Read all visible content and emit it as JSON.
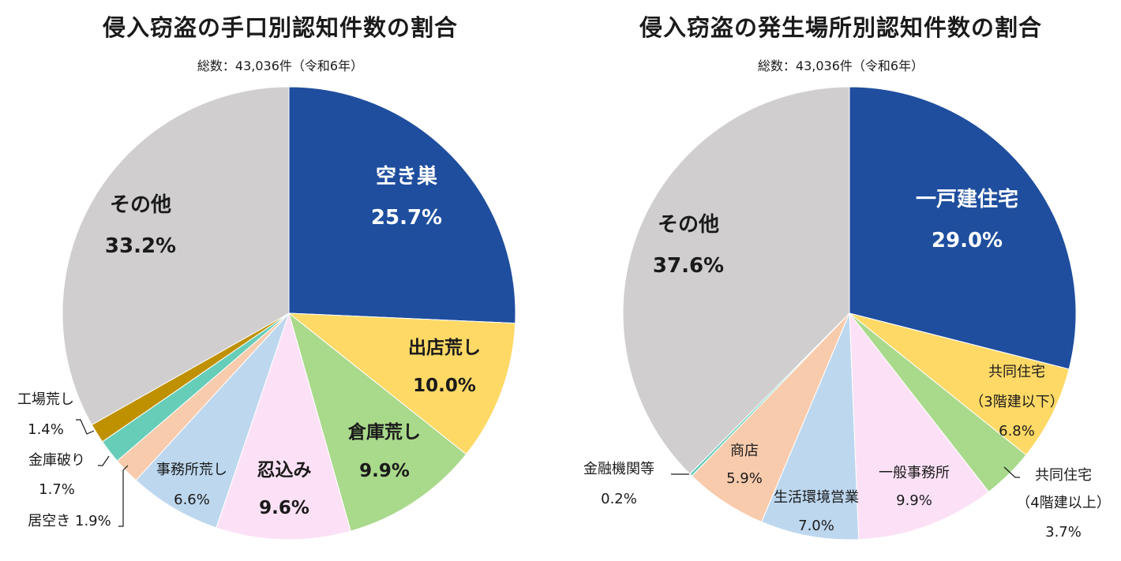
{
  "chart_data": [
    {
      "type": "pie",
      "title": "侵入窃盗の手口別認知件数の割合",
      "subtitle": "総数：43,036件（令和6年）",
      "slices": [
        {
          "label": "空き巣",
          "value_label": "25.7%",
          "value": 25.7,
          "color": "#1F4E9E"
        },
        {
          "label": "出店荒し",
          "value_label": "10.0%",
          "value": 10.0,
          "color": "#FFD966"
        },
        {
          "label": "倉庫荒し",
          "value_label": "9.9%",
          "value": 9.9,
          "color": "#A9D98B"
        },
        {
          "label": "忍込み",
          "value_label": "9.6%",
          "value": 9.6,
          "color": "#FCE1F6"
        },
        {
          "label": "事務所荒し",
          "value_label": "6.6%",
          "value": 6.6,
          "color": "#BDD7EE"
        },
        {
          "label": "居空き",
          "value_label": "1.9%",
          "value": 1.9,
          "color": "#F8CBAD"
        },
        {
          "label": "金庫破り",
          "value_label": "1.7%",
          "value": 1.7,
          "color": "#66CDB8"
        },
        {
          "label": "工場荒し",
          "value_label": "1.4%",
          "value": 1.4,
          "color": "#BF9000"
        },
        {
          "label": "その他",
          "value_label": "33.2%",
          "value": 33.2,
          "color": "#D0CECE"
        }
      ]
    },
    {
      "type": "pie",
      "title": "侵入窃盗の発生場所別認知件数の割合",
      "subtitle": "総数：43,036件（令和6年）",
      "slices": [
        {
          "label": "一戸建住宅",
          "value_label": "29.0%",
          "value": 29.0,
          "color": "#1F4E9E"
        },
        {
          "label": "共同住宅（3階建以下）",
          "label_lines": [
            "共同住宅",
            "（3階建以下）"
          ],
          "value_label": "6.8%",
          "value": 6.8,
          "color": "#FFD966"
        },
        {
          "label": "共同住宅（4階建以上）",
          "label_lines": [
            "共同住宅",
            "（4階建以上）"
          ],
          "value_label": "3.7%",
          "value": 3.7,
          "color": "#A9D98B"
        },
        {
          "label": "一般事務所",
          "value_label": "9.9%",
          "value": 9.9,
          "color": "#FCE1F6"
        },
        {
          "label": "生活環境営業",
          "value_label": "7.0%",
          "value": 7.0,
          "color": "#BDD7EE"
        },
        {
          "label": "商店",
          "value_label": "5.9%",
          "value": 5.9,
          "color": "#F8CBAD"
        },
        {
          "label": "金融機関等",
          "value_label": "0.2%",
          "value": 0.2,
          "color": "#66CDB8"
        },
        {
          "label": "その他",
          "value_label": "37.6%",
          "value": 37.6,
          "color": "#D0CECE"
        }
      ]
    }
  ]
}
